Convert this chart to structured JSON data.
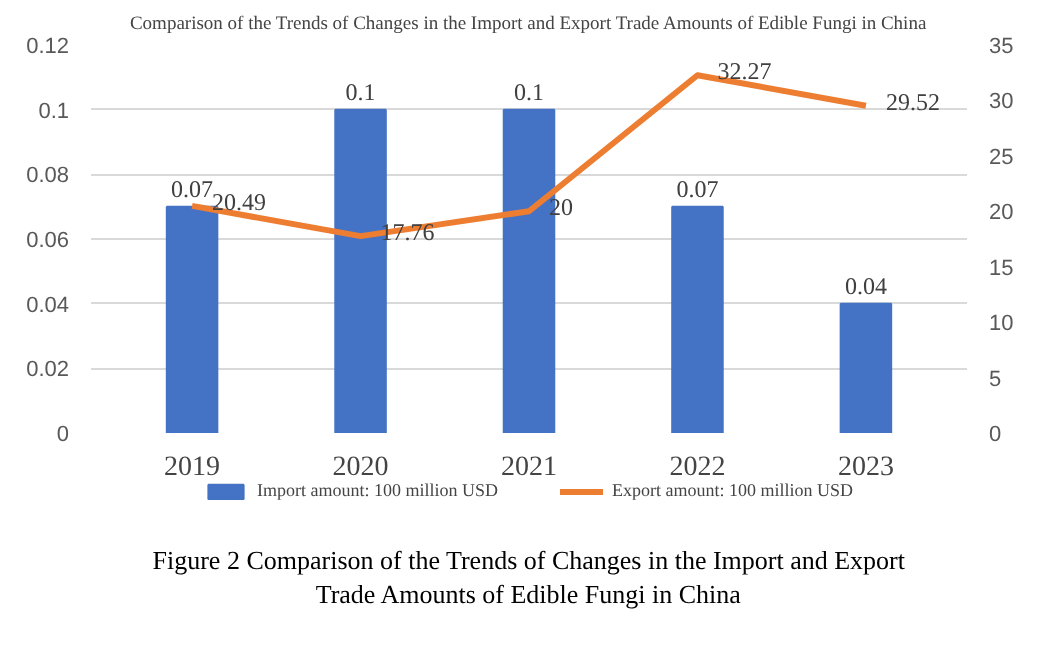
{
  "chart_data": {
    "type": "bar",
    "title": "Comparison of the Trends of Changes in the Import and Export Trade Amounts of Edible Fungi in China",
    "categories": [
      "2019",
      "2020",
      "2021",
      "2022",
      "2023"
    ],
    "series": [
      {
        "name": "Import amount: 100 million USD",
        "color": "#4472c4",
        "values": [
          0.07,
          0.1,
          0.1,
          0.07,
          0.04
        ]
      },
      {
        "name": "Export amount: 100 million USD",
        "type": "line",
        "axis": "y2",
        "color": "#ed7d31",
        "values": [
          20.49,
          17.76,
          20,
          32.27,
          29.52
        ]
      }
    ],
    "ylim": [
      0,
      0.12
    ],
    "yticks": [
      0,
      0.02,
      0.04,
      0.06,
      0.08,
      0.1,
      0.12
    ],
    "y2lim": [
      0,
      35
    ],
    "y2ticks": [
      0,
      5,
      10,
      15,
      20,
      25,
      30,
      35
    ],
    "grid": "y",
    "legend": "bottom",
    "data_labels": true,
    "marker": "none",
    "line_style": "solid",
    "annotations": [
      "Figure 2 Comparison of the Trends of Changes in the Import and Export Trade Amounts of Edible Fungi in China"
    ]
  }
}
